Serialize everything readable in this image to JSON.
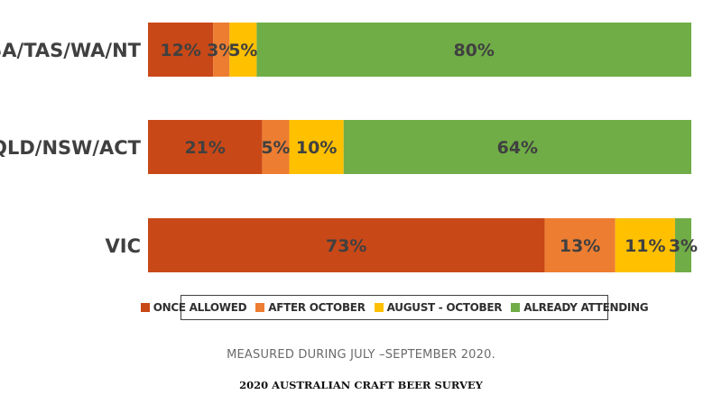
{
  "chart_data": {
    "type": "bar",
    "orientation": "horizontal",
    "stacked": true,
    "categories": [
      "SA/TAS/WA/NT",
      "QLD/NSW/ACT",
      "VIC"
    ],
    "series": [
      {
        "name": "ONCE ALLOWED",
        "color": "#C94817",
        "values": [
          12,
          21,
          73
        ],
        "labels": [
          "12%",
          "21%",
          "73%"
        ]
      },
      {
        "name": "AFTER OCTOBER",
        "color": "#ED7D31",
        "values": [
          3,
          5,
          13
        ],
        "labels": [
          "3%",
          "5%",
          "13%"
        ]
      },
      {
        "name": "AUGUST - OCTOBER",
        "color": "#FFC000",
        "values": [
          5,
          10,
          11
        ],
        "labels": [
          "5%",
          "10%",
          "11%"
        ]
      },
      {
        "name": "ALREADY ATTENDING",
        "color": "#70AD47",
        "values": [
          80,
          64,
          3
        ],
        "labels": [
          "80%",
          "64%",
          "3%"
        ]
      }
    ],
    "xlim": [
      0,
      100
    ],
    "legend_position": "bottom",
    "grid": false
  },
  "footnote": "MEASURED DURING JULY –SEPTEMBER 2020.",
  "source": "2020 AUSTRALIAN CRAFT BEER SURVEY"
}
